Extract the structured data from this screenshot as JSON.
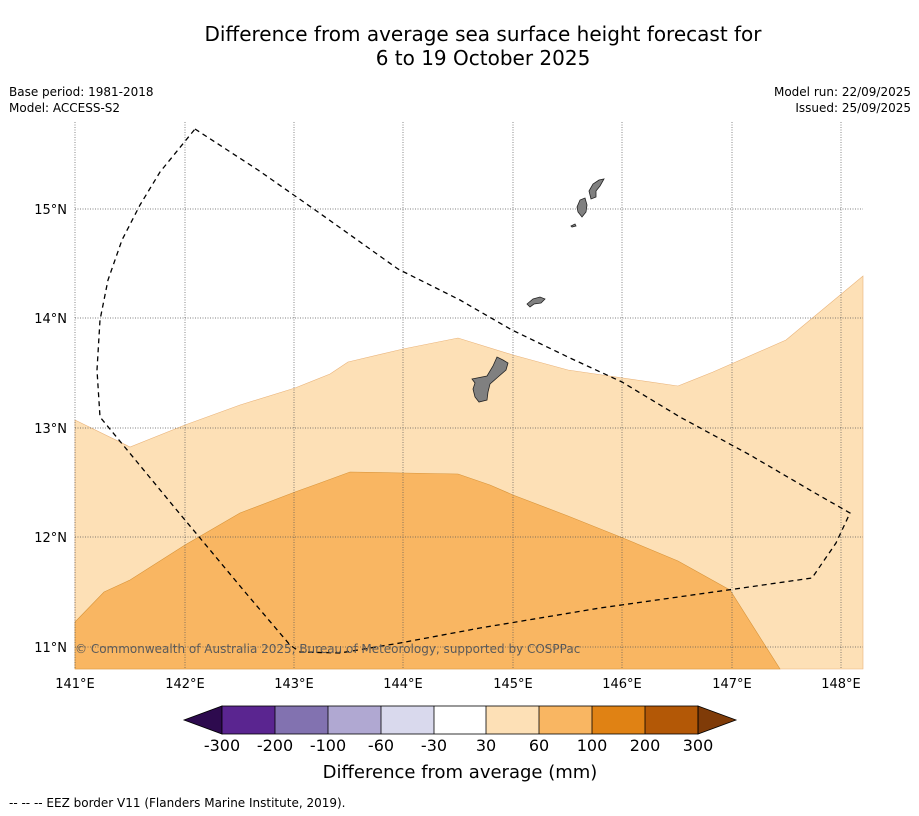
{
  "header": {
    "title_line1": "Difference from average sea surface height forecast for",
    "title_line2": "6 to 19 October 2025",
    "base_period": "Base period: 1981-2018",
    "model": "Model: ACCESS-S2",
    "model_run": "Model run: 22/09/2025",
    "issued": "Issued: 25/09/2025"
  },
  "map": {
    "lon_ticks": [
      "141°E",
      "142°E",
      "143°E",
      "144°E",
      "145°E",
      "146°E",
      "147°E",
      "148°E"
    ],
    "lat_ticks": [
      "15°N",
      "14°N",
      "13°N",
      "12°N",
      "11°N"
    ],
    "copyright": "© Commonwealth of Australia 2025, Bureau of Meteorology, supported by COSPPac",
    "colors": {
      "band_30_60": "#fde0b6",
      "band_60_100": "#f9b662",
      "land": "#808080",
      "ocean": "#ffffff"
    }
  },
  "colorbar": {
    "title": "Difference from average (mm)",
    "tick_labels": [
      "-300",
      "-200",
      "-100",
      "-60",
      "-30",
      "30",
      "60",
      "100",
      "200",
      "300"
    ],
    "colors": [
      "#2d0a4e",
      "#5a2590",
      "#8272b0",
      "#b0a8d2",
      "#d9d9ed",
      "#ffffff",
      "#fde0b6",
      "#f9b662",
      "#e08214",
      "#b35806",
      "#7f3b08"
    ]
  },
  "footer": {
    "legend": "--  --  -- EEZ border V11 (Flanders Marine Institute, 2019)."
  }
}
